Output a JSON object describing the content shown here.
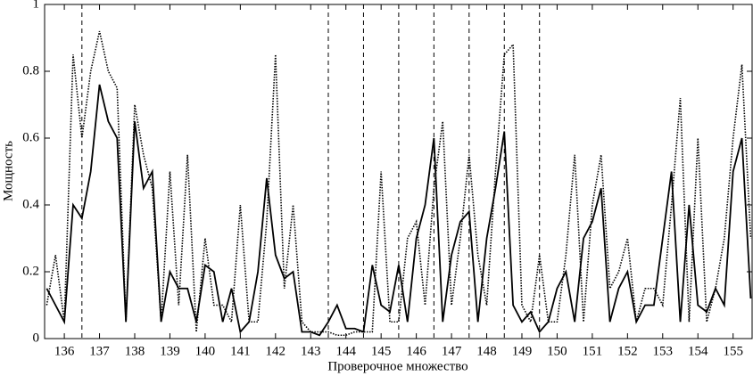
{
  "chart_data": {
    "type": "line",
    "x_label": "Проверочное множество",
    "y_label": "Мощность",
    "x": [
      135.5,
      135.75,
      136,
      136.25,
      136.5,
      136.75,
      137,
      137.25,
      137.5,
      137.75,
      138,
      138.25,
      138.5,
      138.75,
      139,
      139.25,
      139.5,
      139.75,
      140,
      140.25,
      140.5,
      140.75,
      141,
      141.25,
      141.5,
      141.75,
      142,
      142.25,
      142.5,
      142.75,
      143,
      143.25,
      143.5,
      143.75,
      144,
      144.25,
      144.5,
      144.75,
      145,
      145.25,
      145.5,
      145.75,
      146,
      146.25,
      146.5,
      146.75,
      147,
      147.25,
      147.5,
      147.75,
      148,
      148.25,
      148.5,
      148.75,
      149,
      149.25,
      149.5,
      149.75,
      150,
      150.25,
      150.5,
      150.75,
      151,
      151.25,
      151.5,
      151.75,
      152,
      152.25,
      152.5,
      152.75,
      153,
      153.25,
      153.5,
      153.75,
      154,
      154.25,
      154.5,
      154.75,
      155,
      155.25,
      155.5
    ],
    "series": [
      {
        "color": "#000000",
        "dash": "solid",
        "values": [
          0.15,
          0.1,
          0.05,
          0.4,
          0.36,
          0.5,
          0.76,
          0.65,
          0.6,
          0.05,
          0.65,
          0.45,
          0.5,
          0.05,
          0.2,
          0.15,
          0.15,
          0.05,
          0.22,
          0.2,
          0.05,
          0.15,
          0.02,
          0.05,
          0.2,
          0.48,
          0.25,
          0.18,
          0.2,
          0.02,
          0.02,
          0.01,
          0.05,
          0.1,
          0.03,
          0.03,
          0.02,
          0.22,
          0.1,
          0.08,
          0.22,
          0.05,
          0.3,
          0.4,
          0.6,
          0.05,
          0.25,
          0.35,
          0.38,
          0.05,
          0.3,
          0.45,
          0.62,
          0.1,
          0.05,
          0.08,
          0.02,
          0.05,
          0.15,
          0.2,
          0.05,
          0.3,
          0.35,
          0.45,
          0.05,
          0.15,
          0.2,
          0.05,
          0.1,
          0.1,
          0.3,
          0.5,
          0.05,
          0.4,
          0.1,
          0.08,
          0.15,
          0.1,
          0.5,
          0.6,
          0.12
        ]
      },
      {
        "color": "#000000",
        "dash": "dotted",
        "values": [
          0.1,
          0.25,
          0.05,
          0.85,
          0.6,
          0.8,
          0.92,
          0.8,
          0.75,
          0.05,
          0.7,
          0.55,
          0.45,
          0.05,
          0.5,
          0.1,
          0.55,
          0.02,
          0.3,
          0.1,
          0.1,
          0.05,
          0.4,
          0.05,
          0.05,
          0.35,
          0.85,
          0.15,
          0.4,
          0.05,
          0.02,
          0.02,
          0.02,
          0.01,
          0.01,
          0.02,
          0.02,
          0.02,
          0.5,
          0.05,
          0.05,
          0.3,
          0.35,
          0.1,
          0.45,
          0.65,
          0.1,
          0.3,
          0.55,
          0.25,
          0.1,
          0.5,
          0.85,
          0.88,
          0.1,
          0.05,
          0.25,
          0.05,
          0.05,
          0.25,
          0.55,
          0.05,
          0.4,
          0.55,
          0.15,
          0.2,
          0.3,
          0.05,
          0.15,
          0.15,
          0.1,
          0.4,
          0.72,
          0.05,
          0.6,
          0.05,
          0.15,
          0.3,
          0.6,
          0.82,
          0.3
        ]
      }
    ],
    "xlim": [
      135.44,
      155.54
    ],
    "xticks": [
      136,
      137,
      138,
      139,
      140,
      141,
      142,
      143,
      144,
      145,
      146,
      147,
      148,
      149,
      150,
      151,
      152,
      153,
      154,
      155
    ],
    "ylim": [
      0,
      1
    ],
    "yticks": [
      0,
      0.2,
      0.4,
      0.6,
      0.8,
      1
    ],
    "vlines": [
      136.5,
      143.5,
      144.5,
      145.5,
      146.5,
      147.5,
      148.5,
      149.5
    ]
  }
}
